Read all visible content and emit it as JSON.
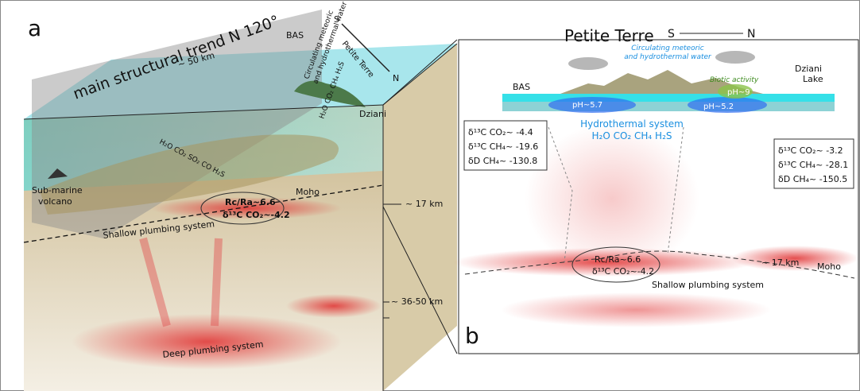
{
  "panel_a": {
    "label": "a",
    "trend": "main structural trend N 120°",
    "distance": "~ 50 km",
    "bas": "BAS",
    "petite_terre": "Petite Terre",
    "compass_s": "S",
    "compass_n": "N",
    "dziani": "Dziani",
    "circulating": [
      "Circulating meteoric",
      "and hydrothermal water"
    ],
    "gases_surface": "H₂O CO₂ CH₄ H₂S",
    "volcano": [
      "Sub-marine",
      "volcano"
    ],
    "gases_deep": "H₂O CO₂ SO₂ CO H₂S",
    "moho": "Moho",
    "depth_moho": "~ 17 km",
    "rc_ra": "Rc/Ra~6.6",
    "d13c": "δ¹³C CO₂~-4.2",
    "shallow": "Shallow plumbing system",
    "depth_deep": "~ 36-50 km",
    "deep": "Deep plumbing system"
  },
  "panel_b": {
    "label": "b",
    "title": "Petite Terre",
    "compass_s": "S",
    "compass_n": "N",
    "circulating": [
      "Circulating meteoric",
      "and hydrothermal water"
    ],
    "dziani_lake": [
      "Dziani",
      "Lake"
    ],
    "bas": "BAS",
    "biotic": "Biotic activity",
    "ph_left": "pH~5.7",
    "ph_lake": "pH~9",
    "ph_right": "pH~5.2",
    "hydrothermal": "Hydrothermal system",
    "gases": "H₂O CO₂ CH₄ H₂S",
    "box_left": [
      "δ¹³C CO₂~ -4.4",
      "δ¹³C CH₄~ -19.6",
      "δD CH₄~ -130.8"
    ],
    "box_right": [
      "δ¹³C CO₂~ -3.2",
      "δ¹³C CH₄~ -28.1",
      "δD CH₄~ -150.5"
    ],
    "rc_ra": "Rc/Ra~6.6",
    "d13c": "δ¹³C CO₂~-4.2",
    "depth_moho": "~ 17 km",
    "moho": "Moho",
    "shallow": "Shallow plumbing system"
  }
}
